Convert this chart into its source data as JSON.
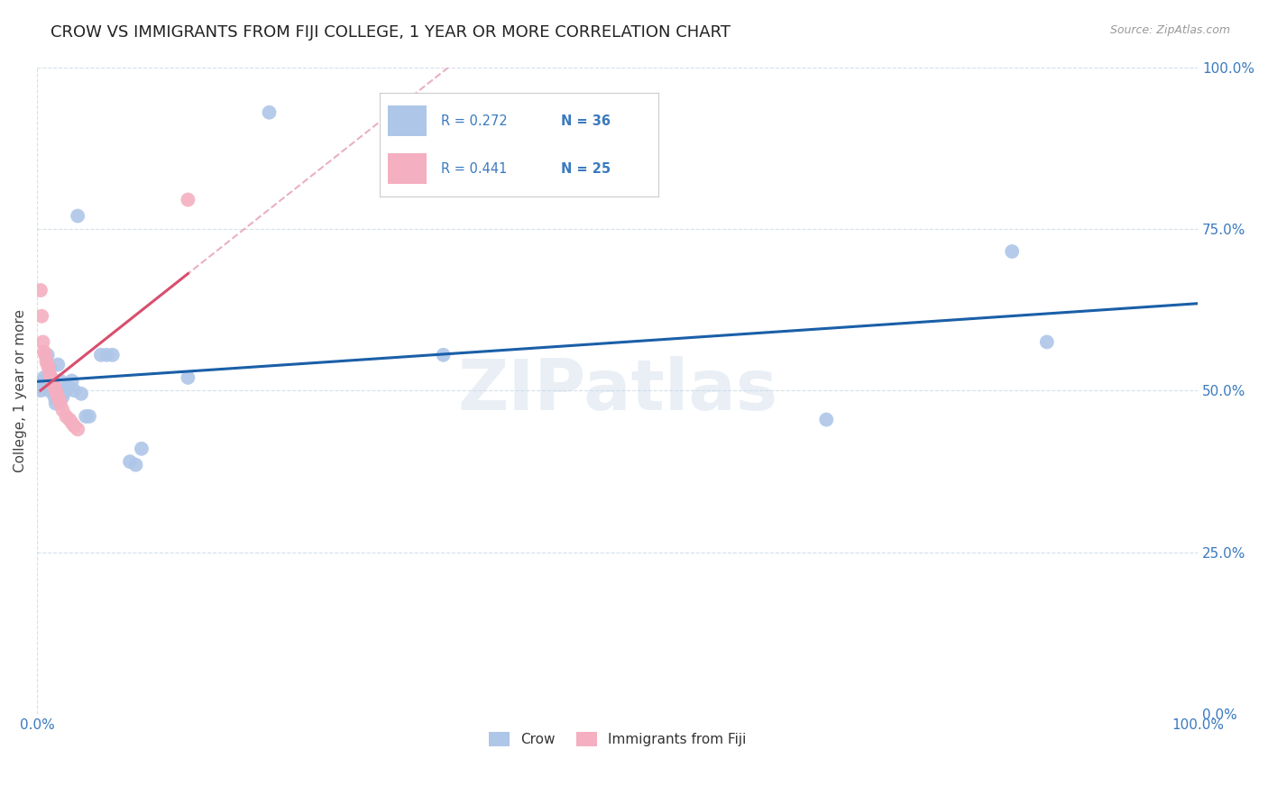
{
  "title": "CROW VS IMMIGRANTS FROM FIJI COLLEGE, 1 YEAR OR MORE CORRELATION CHART",
  "source": "Source: ZipAtlas.com",
  "ylabel": "College, 1 year or more",
  "xlim": [
    0,
    1.0
  ],
  "ylim": [
    0,
    1.0
  ],
  "ytick_vals": [
    0.0,
    0.25,
    0.5,
    0.75,
    1.0
  ],
  "crow_color": "#aec6e8",
  "fiji_color": "#f4afc0",
  "crow_line_color": "#1a5fa8",
  "fiji_line_color": "#d94f6e",
  "fiji_dash_color": "#e8a8b8",
  "background_color": "#ffffff",
  "grid_color": "#d0dce8",
  "title_fontsize": 13,
  "axis_color": "#3a7abf",
  "label_fontsize": 11,
  "crow_points": [
    [
      0.003,
      0.5
    ],
    [
      0.005,
      0.505
    ],
    [
      0.006,
      0.52
    ],
    [
      0.007,
      0.515
    ],
    [
      0.008,
      0.51
    ],
    [
      0.009,
      0.555
    ],
    [
      0.01,
      0.5
    ],
    [
      0.011,
      0.535
    ],
    [
      0.012,
      0.505
    ],
    [
      0.013,
      0.515
    ],
    [
      0.014,
      0.5
    ],
    [
      0.015,
      0.49
    ],
    [
      0.016,
      0.48
    ],
    [
      0.018,
      0.54
    ],
    [
      0.02,
      0.515
    ],
    [
      0.022,
      0.49
    ],
    [
      0.025,
      0.5
    ],
    [
      0.027,
      0.505
    ],
    [
      0.03,
      0.515
    ],
    [
      0.032,
      0.5
    ],
    [
      0.035,
      0.77
    ],
    [
      0.038,
      0.495
    ],
    [
      0.042,
      0.46
    ],
    [
      0.045,
      0.46
    ],
    [
      0.055,
      0.555
    ],
    [
      0.06,
      0.555
    ],
    [
      0.065,
      0.555
    ],
    [
      0.08,
      0.39
    ],
    [
      0.085,
      0.385
    ],
    [
      0.09,
      0.41
    ],
    [
      0.13,
      0.52
    ],
    [
      0.2,
      0.93
    ],
    [
      0.35,
      0.555
    ],
    [
      0.68,
      0.455
    ],
    [
      0.84,
      0.715
    ],
    [
      0.87,
      0.575
    ]
  ],
  "fiji_points": [
    [
      0.003,
      0.655
    ],
    [
      0.004,
      0.615
    ],
    [
      0.005,
      0.575
    ],
    [
      0.006,
      0.56
    ],
    [
      0.007,
      0.555
    ],
    [
      0.008,
      0.545
    ],
    [
      0.009,
      0.54
    ],
    [
      0.01,
      0.535
    ],
    [
      0.011,
      0.525
    ],
    [
      0.012,
      0.52
    ],
    [
      0.013,
      0.515
    ],
    [
      0.014,
      0.51
    ],
    [
      0.015,
      0.505
    ],
    [
      0.016,
      0.5
    ],
    [
      0.017,
      0.495
    ],
    [
      0.018,
      0.49
    ],
    [
      0.019,
      0.485
    ],
    [
      0.02,
      0.48
    ],
    [
      0.022,
      0.47
    ],
    [
      0.025,
      0.46
    ],
    [
      0.028,
      0.455
    ],
    [
      0.03,
      0.45
    ],
    [
      0.032,
      0.445
    ],
    [
      0.035,
      0.44
    ],
    [
      0.13,
      0.795
    ]
  ]
}
